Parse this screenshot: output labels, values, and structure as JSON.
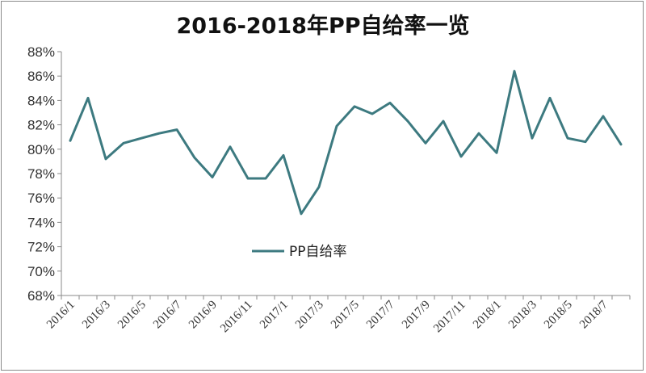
{
  "chart_data": {
    "type": "line",
    "title": "2016-2018年PP自给率一览",
    "xlabel": "",
    "ylabel": "",
    "ylim": [
      68,
      88
    ],
    "yticks": [
      "68%",
      "70%",
      "72%",
      "74%",
      "76%",
      "78%",
      "80%",
      "82%",
      "84%",
      "86%",
      "88%"
    ],
    "xtick_labels": [
      "2016/1",
      "2016/3",
      "2016/5",
      "2016/7",
      "2016/9",
      "2016/11",
      "2017/1",
      "2017/3",
      "2017/5",
      "2017/7",
      "2017/9",
      "2017/11",
      "2018/1",
      "2018/3",
      "2018/5",
      "2018/7"
    ],
    "x": [
      "2016/1",
      "2016/2",
      "2016/3",
      "2016/4",
      "2016/5",
      "2016/6",
      "2016/7",
      "2016/8",
      "2016/9",
      "2016/10",
      "2016/11",
      "2016/12",
      "2017/1",
      "2017/2",
      "2017/3",
      "2017/4",
      "2017/5",
      "2017/6",
      "2017/7",
      "2017/8",
      "2017/9",
      "2017/10",
      "2017/11",
      "2017/12",
      "2018/1",
      "2018/2",
      "2018/3",
      "2018/4",
      "2018/5",
      "2018/6",
      "2018/7",
      "2018/8"
    ],
    "series": [
      {
        "name": "PP自给率",
        "color": "#3d7a80",
        "values": [
          80.7,
          84.2,
          79.2,
          80.5,
          80.9,
          81.3,
          81.6,
          79.3,
          77.7,
          80.2,
          77.6,
          77.6,
          79.5,
          74.7,
          76.9,
          81.9,
          83.5,
          82.9,
          83.8,
          82.3,
          80.5,
          82.3,
          79.4,
          81.3,
          79.7,
          86.4,
          80.9,
          84.2,
          80.9,
          80.6,
          82.7,
          80.4
        ]
      }
    ],
    "grid": false,
    "legend": "center"
  }
}
